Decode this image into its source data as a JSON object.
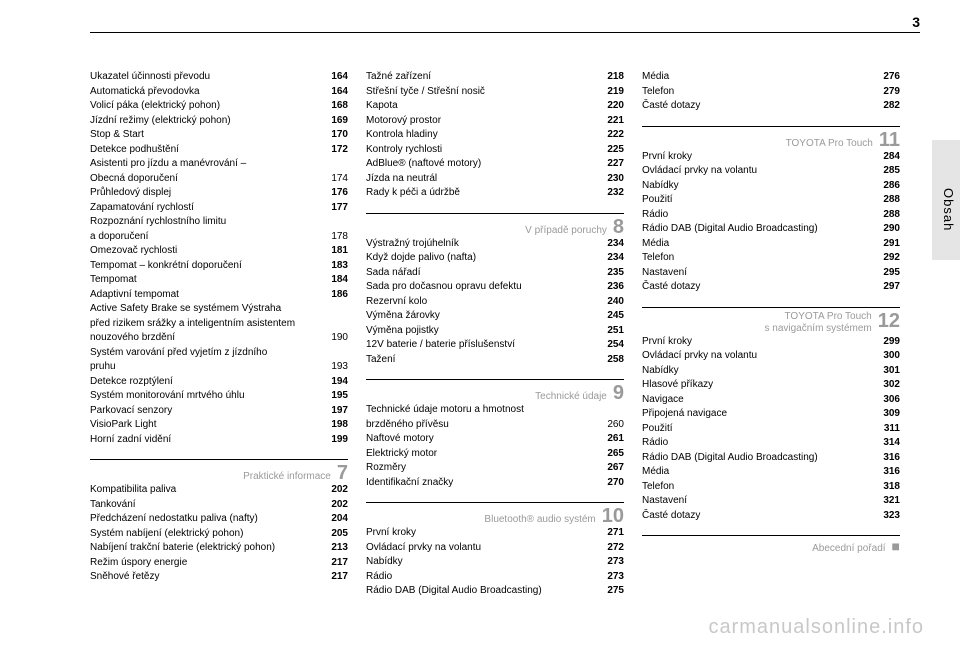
{
  "page_number": "3",
  "side_label": "Obsah",
  "watermark": "carmanualsonline.info",
  "col1": {
    "block1": [
      {
        "label": "Ukazatel účinnosti převodu",
        "pg": "164"
      },
      {
        "label": "Automatická převodovka",
        "pg": "164"
      },
      {
        "label": "Volicí páka (elektrický pohon)",
        "pg": "168"
      },
      {
        "label": "Jízdní režimy (elektrický pohon)",
        "pg": "169"
      },
      {
        "label": "Stop & Start",
        "pg": "170"
      },
      {
        "label": "Detekce podhuštění",
        "pg": "172"
      }
    ],
    "wrap1": {
      "l1": "Asistenti pro jízdu a manévrování –",
      "l2": "Obecná doporučení",
      "pg": "174"
    },
    "block2": [
      {
        "label": "Průhledový displej",
        "pg": "176"
      },
      {
        "label": "Zapamatování rychlostí",
        "pg": "177"
      }
    ],
    "wrap2": {
      "l1": "Rozpoznání rychlostního limitu",
      "l2": "a doporučení",
      "pg": "178"
    },
    "block3": [
      {
        "label": "Omezovač rychlosti",
        "pg": "181"
      },
      {
        "label": "Tempomat – konkrétní doporučení",
        "pg": "183"
      },
      {
        "label": "Tempomat",
        "pg": "184"
      },
      {
        "label": "Adaptivní tempomat",
        "pg": "186"
      }
    ],
    "wrap3": {
      "l1": "Active Safety Brake se systémem Výstraha",
      "l2": "před rizikem srážky a inteligentním asistentem",
      "l3": "nouzového brzdění",
      "pg": "190"
    },
    "wrap4": {
      "l1": "Systém varování před vyjetím z jízdního",
      "l2": "pruhu",
      "pg": "193"
    },
    "block4": [
      {
        "label": "Detekce rozptýlení",
        "pg": "194"
      },
      {
        "label": "Systém monitorování mrtvého úhlu",
        "pg": "195"
      },
      {
        "label": "Parkovací senzory",
        "pg": "197"
      },
      {
        "label": "VisioPark Light",
        "pg": "198"
      },
      {
        "label": "Horní zadní vidění",
        "pg": "199"
      }
    ],
    "sec7": {
      "title": "Praktické informace",
      "num": "7",
      "items": [
        {
          "label": "Kompatibilita paliva",
          "pg": "202"
        },
        {
          "label": "Tankování",
          "pg": "202"
        },
        {
          "label": "Předcházení nedostatku paliva (nafty)",
          "pg": "204"
        },
        {
          "label": "Systém nabíjení (elektrický pohon)",
          "pg": "205"
        },
        {
          "label": "Nabíjení trakční baterie (elektrický pohon)",
          "pg": "213"
        },
        {
          "label": "Režim úspory energie",
          "pg": "217"
        },
        {
          "label": "Sněhové řetězy",
          "pg": "217"
        }
      ]
    }
  },
  "col2": {
    "block1": [
      {
        "label": "Tažné zařízení",
        "pg": "218"
      },
      {
        "label": "Střešní tyče / Střešní nosič",
        "pg": "219"
      },
      {
        "label": "Kapota",
        "pg": "220"
      },
      {
        "label": "Motorový prostor",
        "pg": "221"
      },
      {
        "label": "Kontrola hladiny",
        "pg": "222"
      },
      {
        "label": "Kontroly rychlosti",
        "pg": "225"
      },
      {
        "label": "AdBlue® (naftové motory)",
        "pg": "227"
      },
      {
        "label": "Jízda na neutrál",
        "pg": "230"
      },
      {
        "label": "Rady k péči a údržbě",
        "pg": "232"
      }
    ],
    "sec8": {
      "title": "V případě poruchy",
      "num": "8",
      "items": [
        {
          "label": "Výstražný trojúhelník",
          "pg": "234"
        },
        {
          "label": "Když dojde palivo (nafta)",
          "pg": "234"
        },
        {
          "label": "Sada nářadí",
          "pg": "235"
        },
        {
          "label": "Sada pro dočasnou opravu defektu",
          "pg": "236"
        },
        {
          "label": "Rezervní kolo",
          "pg": "240"
        },
        {
          "label": "Výměna žárovky",
          "pg": "245"
        },
        {
          "label": "Výměna pojistky",
          "pg": "251"
        },
        {
          "label": "12V baterie / baterie příslušenství",
          "pg": "254"
        },
        {
          "label": "Tažení",
          "pg": "258"
        }
      ]
    },
    "sec9": {
      "title": "Technické údaje",
      "num": "9",
      "wrap": {
        "l1": "Technické údaje motoru a hmotnost",
        "l2": "brzděného přívěsu",
        "pg": "260"
      },
      "items": [
        {
          "label": "Naftové motory",
          "pg": "261"
        },
        {
          "label": "Elektrický motor",
          "pg": "265"
        },
        {
          "label": "Rozměry",
          "pg": "267"
        },
        {
          "label": "Identifikační značky",
          "pg": "270"
        }
      ]
    },
    "sec10": {
      "title": "Bluetooth® audio systém",
      "num": "10",
      "items": [
        {
          "label": "První kroky",
          "pg": "271"
        },
        {
          "label": "Ovládací prvky na volantu",
          "pg": "272"
        },
        {
          "label": "Nabídky",
          "pg": "273"
        },
        {
          "label": "Rádio",
          "pg": "273"
        },
        {
          "label": "Rádio DAB (Digital Audio Broadcasting)",
          "pg": "275"
        }
      ]
    }
  },
  "col3": {
    "block1": [
      {
        "label": "Média",
        "pg": "276"
      },
      {
        "label": "Telefon",
        "pg": "279"
      },
      {
        "label": "Časté dotazy",
        "pg": "282"
      }
    ],
    "sec11": {
      "title": "TOYOTA Pro Touch",
      "num": "11",
      "items": [
        {
          "label": "První kroky",
          "pg": "284"
        },
        {
          "label": "Ovládací prvky na volantu",
          "pg": "285"
        },
        {
          "label": "Nabídky",
          "pg": "286"
        },
        {
          "label": "Použití",
          "pg": "288"
        },
        {
          "label": "Rádio",
          "pg": "288"
        },
        {
          "label": "Rádio DAB (Digital Audio Broadcasting)",
          "pg": "290"
        },
        {
          "label": "Média",
          "pg": "291"
        },
        {
          "label": "Telefon",
          "pg": "292"
        },
        {
          "label": "Nastavení",
          "pg": "295"
        },
        {
          "label": "Časté dotazy",
          "pg": "297"
        }
      ]
    },
    "sec12": {
      "title_l1": "TOYOTA Pro Touch",
      "title_l2": "s navigačním systémem",
      "num": "12",
      "items": [
        {
          "label": "První kroky",
          "pg": "299"
        },
        {
          "label": "Ovládací prvky na volantu",
          "pg": "300"
        },
        {
          "label": "Nabídky",
          "pg": "301"
        },
        {
          "label": "Hlasové příkazy",
          "pg": "302"
        },
        {
          "label": "Navigace",
          "pg": "306"
        },
        {
          "label": "Připojená navigace",
          "pg": "309"
        },
        {
          "label": "Použití",
          "pg": "311"
        },
        {
          "label": "Rádio",
          "pg": "314"
        },
        {
          "label": "Rádio DAB (Digital Audio Broadcasting)",
          "pg": "316"
        },
        {
          "label": "Média",
          "pg": "316"
        },
        {
          "label": "Telefon",
          "pg": "318"
        },
        {
          "label": "Nastavení",
          "pg": "321"
        },
        {
          "label": "Časté dotazy",
          "pg": "323"
        }
      ]
    },
    "secIndex": {
      "title": "Abecední pořadí",
      "sq": "■"
    }
  }
}
